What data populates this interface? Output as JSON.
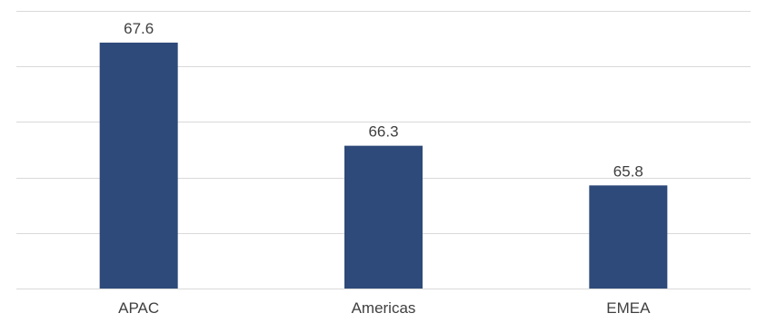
{
  "chart_data": {
    "type": "bar",
    "categories": [
      "APAC",
      "Americas",
      "EMEA"
    ],
    "values": [
      67.6,
      66.3,
      65.8
    ],
    "data_labels": [
      "67.6",
      "66.3",
      "65.8"
    ],
    "ylim": [
      64.5,
      68.0
    ],
    "grid": true,
    "legend": "none",
    "colors": {
      "bar": "#2e4a7a",
      "grid": "#d9d9d9",
      "text": "#404040"
    }
  }
}
